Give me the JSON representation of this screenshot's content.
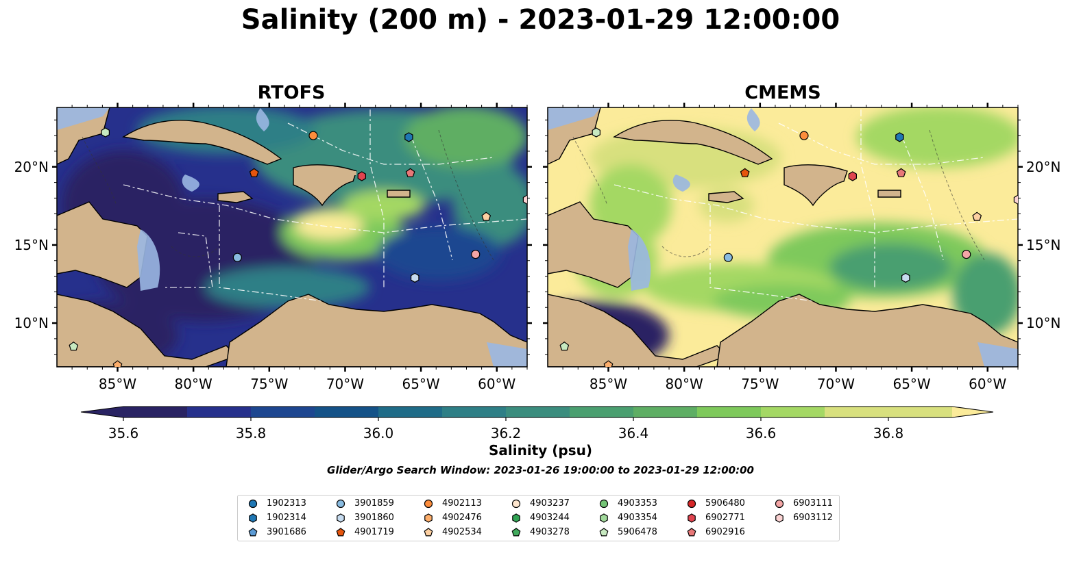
{
  "title": "Salinity (200 m) - 2023-01-29 12:00:00",
  "panels": [
    {
      "title": "RTOFS"
    },
    {
      "title": "CMEMS"
    }
  ],
  "axes": {
    "x_ticks": [
      "85°W",
      "80°W",
      "75°W",
      "70°W",
      "65°W",
      "60°W"
    ],
    "y_ticks": [
      "20°N",
      "15°N",
      "10°N"
    ],
    "lon_range": [
      -89,
      -58
    ],
    "lat_range": [
      7.2,
      23.8
    ]
  },
  "colorbar": {
    "label": "Salinity (psu)",
    "ticks": [
      "35.6",
      "35.8",
      "36.0",
      "36.2",
      "36.4",
      "36.6",
      "36.8"
    ],
    "range": [
      35.55,
      36.9
    ],
    "step": 0.1,
    "colors": [
      "#292363",
      "#26308c",
      "#1d4690",
      "#145288",
      "#1f6c88",
      "#2e7f86",
      "#3b8d7e",
      "#4a9f70",
      "#5eae64",
      "#7ec95b",
      "#a4d864",
      "#d8e07e",
      "#fbeb9a"
    ]
  },
  "search_window": "Glider/Argo Search Window: 2023-01-26 19:00:00 to 2023-01-29 12:00:00",
  "legend": [
    {
      "id": "1902313",
      "color": "#1f77b4",
      "marker": "circle"
    },
    {
      "id": "1902314",
      "color": "#1f77b4",
      "marker": "hexagon"
    },
    {
      "id": "3901686",
      "color": "#5b9bd5",
      "marker": "pentagon"
    },
    {
      "id": "3901859",
      "color": "#89bbe0",
      "marker": "circle"
    },
    {
      "id": "3901860",
      "color": "#c6dbef",
      "marker": "hexagon"
    },
    {
      "id": "4901719",
      "color": "#e6550d",
      "marker": "pentagon"
    },
    {
      "id": "4902113",
      "color": "#fd8d3c",
      "marker": "circle"
    },
    {
      "id": "4902476",
      "color": "#fdae6b",
      "marker": "hexagon"
    },
    {
      "id": "4902534",
      "color": "#fdd0a2",
      "marker": "pentagon"
    },
    {
      "id": "4903237",
      "color": "#fee6ce",
      "marker": "circle"
    },
    {
      "id": "4903244",
      "color": "#31a354",
      "marker": "hexagon"
    },
    {
      "id": "4903278",
      "color": "#41ab5d",
      "marker": "pentagon"
    },
    {
      "id": "4903353",
      "color": "#74c476",
      "marker": "circle"
    },
    {
      "id": "4903354",
      "color": "#a1d99b",
      "marker": "hexagon"
    },
    {
      "id": "5906478",
      "color": "#c7e9c0",
      "marker": "pentagon"
    },
    {
      "id": "5906480",
      "color": "#d62728",
      "marker": "circle"
    },
    {
      "id": "6902771",
      "color": "#e0444f",
      "marker": "hexagon"
    },
    {
      "id": "6902916",
      "color": "#e87878",
      "marker": "pentagon"
    },
    {
      "id": "6903111",
      "color": "#f4a6a6",
      "marker": "circle"
    },
    {
      "id": "6903112",
      "color": "#fbd3d3",
      "marker": "hexagon"
    }
  ],
  "floats": [
    {
      "lon": -85.8,
      "lat": 22.2,
      "color": "#c7e9c0",
      "marker": "hexagon"
    },
    {
      "lon": -72.1,
      "lat": 22.0,
      "color": "#fd8d3c",
      "marker": "circle"
    },
    {
      "lon": -65.8,
      "lat": 21.9,
      "color": "#1f77b4",
      "marker": "hexagon"
    },
    {
      "lon": -76.0,
      "lat": 19.6,
      "color": "#e6550d",
      "marker": "pentagon"
    },
    {
      "lon": -65.7,
      "lat": 19.6,
      "color": "#e87878",
      "marker": "pentagon"
    },
    {
      "lon": -68.9,
      "lat": 19.4,
      "color": "#e0444f",
      "marker": "hexagon"
    },
    {
      "lon": -58.0,
      "lat": 17.9,
      "color": "#fbd3d3",
      "marker": "hexagon"
    },
    {
      "lon": -60.7,
      "lat": 16.8,
      "color": "#fdd0a2",
      "marker": "pentagon"
    },
    {
      "lon": -61.4,
      "lat": 14.4,
      "color": "#f4a6a6",
      "marker": "circle"
    },
    {
      "lon": -77.1,
      "lat": 14.2,
      "color": "#89bbe0",
      "marker": "circle"
    },
    {
      "lon": -65.4,
      "lat": 12.9,
      "color": "#c6dbef",
      "marker": "hexagon"
    },
    {
      "lon": -87.9,
      "lat": 8.5,
      "color": "#c7e9c0",
      "marker": "pentagon"
    },
    {
      "lon": -85.0,
      "lat": 7.3,
      "color": "#fdae6b",
      "marker": "pentagon"
    }
  ]
}
